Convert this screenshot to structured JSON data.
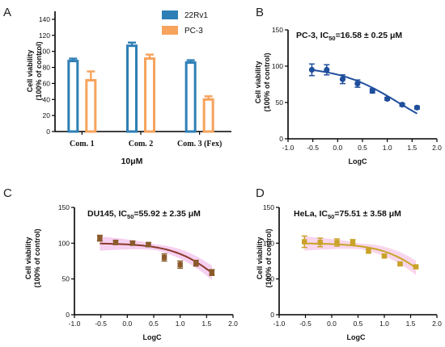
{
  "colors": {
    "series_22rv1": "#2e7fb5",
    "series_pc3": "#f6a35c",
    "curve_b": "#1f4e9c",
    "curve_c": "#8b3a2a",
    "marker_c": "#8b5a2b",
    "band_c": "#f4c8ee",
    "curve_d": "#c9a227",
    "marker_d": "#c9a227",
    "band_d": "#f7cfe9"
  },
  "panels": {
    "a": {
      "letter": "A"
    },
    "b": {
      "letter": "B"
    },
    "c": {
      "letter": "C"
    },
    "d": {
      "letter": "D"
    }
  },
  "chart_data": [
    {
      "type": "bar",
      "panel": "A",
      "categories": [
        "Com. 1",
        "Com. 2",
        "Com. 3 (Fex)"
      ],
      "series": [
        {
          "name": "22Rv1",
          "values": [
            88,
            107,
            86
          ],
          "errors": [
            3,
            4,
            3
          ]
        },
        {
          "name": "PC-3",
          "values": [
            64,
            91,
            40
          ],
          "errors": [
            11,
            5,
            4
          ]
        }
      ],
      "xlabel": "10μM",
      "ylabel": "Cell viability",
      "ylabel2": "(100% of control)",
      "ylim": [
        0,
        150
      ],
      "yticks": [
        0,
        20,
        40,
        60,
        80,
        100,
        120,
        140
      ],
      "legend": "top-right"
    },
    {
      "type": "scatter",
      "panel": "B",
      "title_main": "PC-3, IC",
      "title_sub": "50",
      "title_rest": "=16.58 ± 0.25 μM",
      "x": [
        -0.52,
        -0.22,
        0.1,
        0.4,
        0.7,
        1.0,
        1.3,
        1.6
      ],
      "y": [
        95,
        95,
        82,
        76,
        66,
        55,
        47,
        43
      ],
      "errors": [
        8,
        7,
        6,
        5,
        3,
        2,
        2,
        2
      ],
      "fit_top": 100,
      "fit_bottom": 0,
      "fit_logic50": 1.22,
      "fit_hill": 0.72,
      "band": false,
      "xlabel": "LogC",
      "ylabel": "Cell viability",
      "ylabel2": "(100% of control)",
      "xlim": [
        -1.0,
        2.0
      ],
      "ylim": [
        0,
        150
      ],
      "xticks": [
        "-1.0",
        "-0.5",
        "0.0",
        "0.5",
        "1.0",
        "1.5",
        "2.0"
      ],
      "yticks": [
        0,
        50,
        100,
        150
      ]
    },
    {
      "type": "scatter",
      "panel": "C",
      "title_main": "DU145, IC",
      "title_sub": "50",
      "title_rest": "=55.92 ± 2.35 μM",
      "x": [
        -0.52,
        -0.22,
        0.1,
        0.4,
        0.7,
        1.0,
        1.3,
        1.6
      ],
      "y": [
        107,
        101,
        100,
        98,
        80,
        70,
        72,
        59
      ],
      "errors": [
        4,
        3,
        3,
        3,
        5,
        5,
        4,
        4
      ],
      "fit_top": 100,
      "fit_bottom": 0,
      "fit_logic50": 1.75,
      "fit_hill": 1.0,
      "band": true,
      "xlabel": "LogC",
      "ylabel": "Cell viability",
      "ylabel2": "(100% of control)",
      "xlim": [
        -1.0,
        2.0
      ],
      "ylim": [
        0,
        150
      ],
      "xticks": [
        "-1.0",
        "-0.5",
        "0.0",
        "0.5",
        "1.0",
        "1.5",
        "2.0"
      ],
      "yticks": [
        0,
        50,
        100,
        150
      ]
    },
    {
      "type": "scatter",
      "panel": "D",
      "title_main": "HeLa, IC",
      "title_sub": "50",
      "title_rest": "=75.51 ± 3.58 μM",
      "x": [
        -0.52,
        -0.22,
        0.1,
        0.4,
        0.7,
        1.0,
        1.3,
        1.6
      ],
      "y": [
        102,
        101,
        101,
        101,
        89,
        82,
        71,
        67
      ],
      "errors": [
        8,
        6,
        5,
        4,
        3,
        2,
        2,
        2
      ],
      "fit_top": 100,
      "fit_bottom": 0,
      "fit_logic50": 1.88,
      "fit_hill": 1.0,
      "band": true,
      "xlabel": "LogC",
      "ylabel": "Cell viability",
      "ylabel2": "(100% of control)",
      "xlim": [
        -1.0,
        2.0
      ],
      "ylim": [
        0,
        150
      ],
      "xticks": [
        "-1.0",
        "-0.5",
        "0.0",
        "0.5",
        "1.0",
        "1.5",
        "2.0"
      ],
      "yticks": [
        0,
        50,
        100,
        150
      ]
    }
  ]
}
